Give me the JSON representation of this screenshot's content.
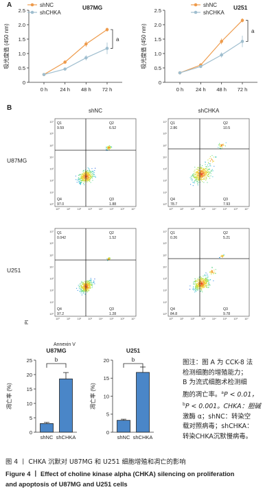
{
  "panel_a_label": "A",
  "panel_b_label": "B",
  "chart_data": [
    {
      "type": "line",
      "title": "U87MG",
      "ylabel": "吸光度值 (450 nm)",
      "xlabel": "",
      "categories": [
        "0 h",
        "24 h",
        "48 h",
        "72 h"
      ],
      "ylim": [
        0,
        2.5
      ],
      "yticks": [
        "0",
        "0.5",
        "1.0",
        "1.5",
        "2.0",
        "2.5"
      ],
      "series": [
        {
          "name": "shNC",
          "color": "#ee9b4c",
          "values": [
            0.27,
            0.7,
            1.33,
            1.83
          ]
        },
        {
          "name": "shCHKA",
          "color": "#9fbecf",
          "values": [
            0.27,
            0.46,
            0.85,
            1.18
          ]
        }
      ],
      "annotation": "a"
    },
    {
      "type": "line",
      "title": "U251",
      "ylabel": "吸光度值 (450 nm)",
      "xlabel": "",
      "categories": [
        "0 h",
        "24 h",
        "48 h",
        "72 h"
      ],
      "ylim": [
        0,
        2.5
      ],
      "yticks": [
        "0",
        "0.5",
        "1.0",
        "1.5",
        "2.0",
        "2.5"
      ],
      "series": [
        {
          "name": "shNC",
          "color": "#ee9b4c",
          "values": [
            0.33,
            0.6,
            1.42,
            2.15
          ]
        },
        {
          "name": "shCHKA",
          "color": "#9fbecf",
          "values": [
            0.33,
            0.55,
            0.95,
            1.42
          ]
        }
      ],
      "annotation": "a"
    },
    {
      "type": "bar",
      "title": "U87MG",
      "ylabel": "凋亡率 (%)",
      "categories": [
        "shNC",
        "shCHKA"
      ],
      "values": [
        3.0,
        18.5
      ],
      "errors": [
        0.4,
        2.2
      ],
      "ylim": [
        0,
        25
      ],
      "yticks": [
        "0",
        "5",
        "10",
        "15",
        "20",
        "25"
      ],
      "color": "#4a86c8",
      "annotation": "b"
    },
    {
      "type": "bar",
      "title": "U251",
      "ylabel": "凋亡率 (%)",
      "categories": [
        "shNC",
        "shCHKA"
      ],
      "values": [
        3.3,
        16.6
      ],
      "errors": [
        0.3,
        1.5
      ],
      "ylim": [
        0,
        20
      ],
      "yticks": [
        "0",
        "5",
        "10",
        "15",
        "20"
      ],
      "color": "#4a86c8",
      "annotation": "b"
    }
  ],
  "flow": {
    "col_labels": [
      "shNC",
      "shCHKA"
    ],
    "row_labels": [
      "U87MG",
      "U251"
    ],
    "ylabel": "PI",
    "xlabel": "Annexin V",
    "tick_labels": [
      "10⁰",
      "10¹",
      "10²",
      "10³",
      "10⁴",
      "10⁵",
      "10⁶",
      "10⁷"
    ],
    "panels": [
      {
        "q1_label": "Q1",
        "q1": "9.59",
        "q2_label": "Q2",
        "q2": "6.52",
        "q3_label": "Q3",
        "q3": "1.88",
        "q4_label": "Q4",
        "q4": "97.0"
      },
      {
        "q1_label": "Q1",
        "q1": "2.86",
        "q2_label": "Q2",
        "q2": "10.5",
        "q3_label": "Q3",
        "q3": "7.93",
        "q4_label": "Q4",
        "q4": "78.7"
      },
      {
        "q1_label": "Q1",
        "q1": "0.042",
        "q2_label": "Q2",
        "q2": "1.52",
        "q3_label": "Q3",
        "q3": "1.28",
        "q4_label": "Q4",
        "q4": "97.2"
      },
      {
        "q1_label": "Q1",
        "q1": "0.26",
        "q2_label": "Q2",
        "q2": "5.21",
        "q3_label": "Q3",
        "q3": "9.78",
        "q4_label": "Q4",
        "q4": "84.8"
      }
    ]
  },
  "note": {
    "l1": "图注：图 A 为 CCK-8 法",
    "l2": "检测细胞的增殖能力；",
    "l3": "B 为流式细胞术检测细",
    "l4a": "胞的凋亡率。",
    "l4sup": "a",
    "l4b": "P < 0.01，",
    "l5sup": "b",
    "l5a": "P < 0.001。CHKA：胆碱",
    "l6": "激酶 α；shNC：转染空",
    "l7": "载对照病毒；shCHKA：",
    "l8": "转染CHKA沉默慢病毒。"
  },
  "caption": {
    "cn": "图 4 丨 CHKA 沉默对 U87MG 和 U251 细胞增殖和凋亡的影响",
    "en1": "Figure 4 丨 Effect of choline kinase alpha (CHKA) silencing on proliferation",
    "en2": "and apoptosis of U87MG and U251 cells"
  }
}
